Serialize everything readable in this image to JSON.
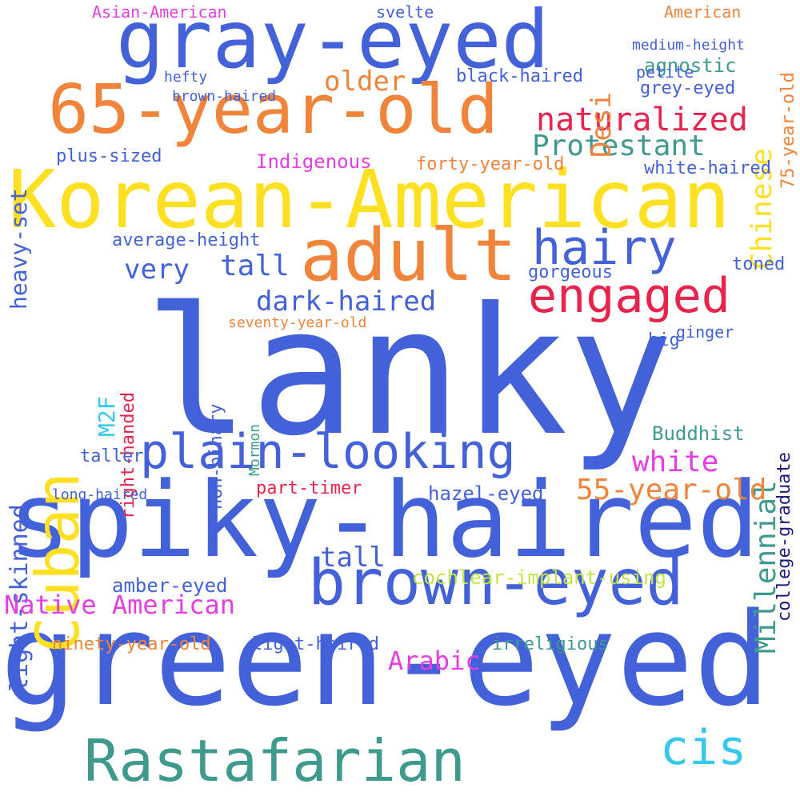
{
  "colors": {
    "blue": "#4361d8",
    "orange": "#f0843a",
    "yellow": "#fde021",
    "red": "#e8244d",
    "teal": "#3f9a8e",
    "magenta": "#e53ee3",
    "cyan": "#38c8ee",
    "lime": "#c3e647",
    "navy": "#1a1a80",
    "green": "#62c262"
  },
  "words": [
    "lanky",
    "green-eyed",
    "spiky-haired",
    "Korean-American",
    "gray-eyed",
    "65-year-old",
    "brown-eyed",
    "Rastafarian",
    "adult",
    "engaged",
    "plain-looking",
    "Cuban",
    "hairy",
    "naturalized",
    "cis",
    "Protestant",
    "dark-haired",
    "Millennial",
    "white",
    "55-year-old",
    "light-skinned",
    "Native American",
    "Desi",
    "Chinese",
    "very",
    "tall",
    "Arabic",
    "college-graduate",
    "cochlear-implant-using",
    "older",
    "tall",
    "heavy-set",
    "M2F",
    "Indigenous",
    "Buddhist",
    "agnostic",
    "amber-eyed",
    "hazel-eyed",
    "right-handed",
    "non-binary",
    "forty-year-old",
    "white-haired",
    "average-height",
    "part-timer",
    "irreligious",
    "light-haired",
    "ninety-year-old",
    "plus-sized",
    "75-year-old",
    "black-haired",
    "grey-eyed",
    "gorgeous",
    "toned",
    "Mormon",
    "seventy-year-old",
    "big",
    "American",
    "Asian-American",
    "svelte",
    "brown-haired",
    "hefty",
    "petite",
    "taller",
    "long-haired",
    "ginger",
    "medium-height"
  ]
}
